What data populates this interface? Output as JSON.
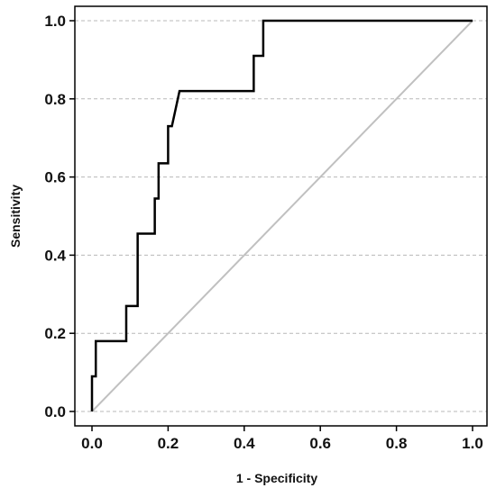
{
  "chart_data": {
    "type": "line",
    "xlabel": "1 - Specificity",
    "ylabel": "Sensitivity",
    "xlim": [
      0.0,
      1.0
    ],
    "ylim": [
      0.0,
      1.0
    ],
    "x_ticks": [
      "0.0",
      "0.2",
      "0.4",
      "0.6",
      "0.8",
      "1.0"
    ],
    "y_ticks": [
      "0.0",
      "0.2",
      "0.4",
      "0.6",
      "0.8",
      "1.0"
    ],
    "grid": {
      "y": true,
      "x": false,
      "style": "dashed"
    },
    "series": [
      {
        "color": "#000000",
        "x": [
          0.0,
          0.0,
          0.01,
          0.01,
          0.09,
          0.09,
          0.12,
          0.12,
          0.165,
          0.165,
          0.175,
          0.175,
          0.2,
          0.2,
          0.21,
          0.23,
          0.425,
          0.425,
          0.45,
          0.45,
          1.0
        ],
        "y": [
          0.0,
          0.09,
          0.09,
          0.18,
          0.18,
          0.27,
          0.27,
          0.455,
          0.455,
          0.545,
          0.545,
          0.635,
          0.635,
          0.73,
          0.73,
          0.82,
          0.82,
          0.91,
          0.91,
          1.0,
          1.0
        ]
      },
      {
        "color": "#c0c0c0",
        "x": [
          0.0,
          1.0
        ],
        "y": [
          0.0,
          1.0
        ]
      }
    ]
  }
}
